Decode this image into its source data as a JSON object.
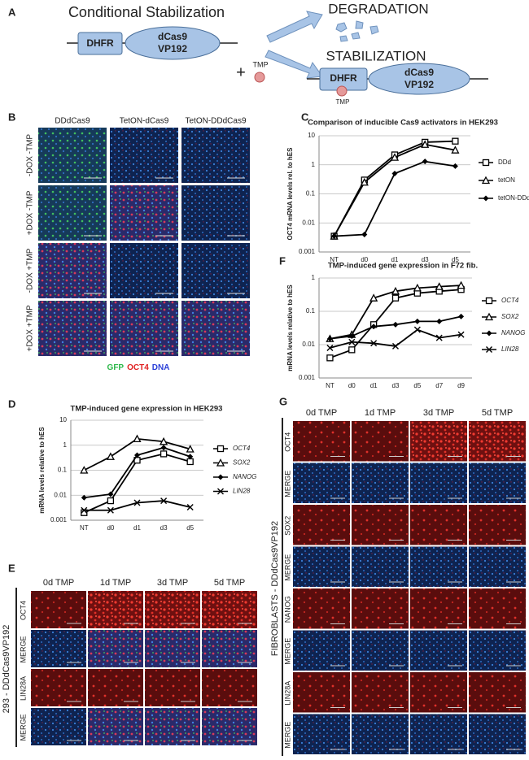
{
  "panel_a": {
    "label": "A",
    "title": "Conditional Stabilization",
    "dhfr": "DHFR",
    "dcas9": "dCas9",
    "vp192": "VP192",
    "plus": "+",
    "tmp": "TMP",
    "degradation": "DEGRADATION",
    "stabilization": "STABILIZATION",
    "dhfr_2": "DHFR",
    "dcas9_2": "dCas9",
    "vp192_2": "VP192",
    "tmp_2": "TMP"
  },
  "panel_b": {
    "label": "B",
    "columns": [
      "DDdCas9",
      "TetON-dCas9",
      "TetON-DDdCas9"
    ],
    "rows": [
      "-DOX -TMP",
      "+DOX -TMP",
      "-DOX +TMP",
      "+DOX +TMP"
    ],
    "legend": [
      "GFP",
      "OCT4",
      "DNA"
    ]
  },
  "panel_e": {
    "label": "E",
    "columns": [
      "0d TMP",
      "1d TMP",
      "3d TMP",
      "5d TMP"
    ],
    "side_label": "293 - DDdCas9VP192",
    "rows": [
      "OCT4",
      "MERGE",
      "LIN28A",
      "MERGE"
    ]
  },
  "panel_g": {
    "label": "G",
    "columns": [
      "0d TMP",
      "1d TMP",
      "3d TMP",
      "5d TMP"
    ],
    "side_label": "FIBROBLASTS - DDdCas9VP192",
    "rows": [
      "OCT4",
      "MERGE",
      "SOX2",
      "MERGE",
      "NANOG",
      "MERGE",
      "LIN28A",
      "MERGE"
    ]
  },
  "chart_data": [
    {
      "type": "line",
      "panel_label": "C",
      "title": "Comparison of inducible Cas9 activators in HEK293",
      "ylabel": "OCT4 mRNA levels rel. to hES",
      "categories": [
        "NT",
        "d0",
        "d1",
        "d3",
        "d5"
      ],
      "yscale": "log",
      "ylim": [
        0.001,
        10
      ],
      "yticks": [
        0.001,
        0.01,
        0.1,
        1,
        10
      ],
      "grid": true,
      "series": [
        {
          "name": "DDd",
          "color": "#000000",
          "marker": "square",
          "values": [
            0.0035,
            0.3,
            2.2,
            6,
            6.5
          ]
        },
        {
          "name": "tetON",
          "color": "#000000",
          "marker": "triangle",
          "values": [
            0.0035,
            0.25,
            1.8,
            5,
            3.2
          ]
        },
        {
          "name": "tetON-DDd",
          "color": "#000000",
          "marker": "diamond",
          "values": [
            0.0035,
            0.004,
            0.5,
            1.3,
            0.9
          ]
        }
      ]
    },
    {
      "type": "line",
      "panel_label": "D",
      "title": "TMP-induced gene expression in HEK293",
      "ylabel": "mRNA levels relative to hES",
      "categories": [
        "NT",
        "d0",
        "d1",
        "d3",
        "d5"
      ],
      "yscale": "log",
      "ylim": [
        0.001,
        10
      ],
      "yticks": [
        0.001,
        0.01,
        0.1,
        1,
        10
      ],
      "grid": true,
      "series": [
        {
          "name": "OCT4",
          "color": "#000000",
          "marker": "square",
          "values": [
            0.002,
            0.006,
            0.25,
            0.45,
            0.22
          ]
        },
        {
          "name": "SOX2",
          "color": "#000000",
          "marker": "triangle",
          "values": [
            0.1,
            0.35,
            1.8,
            1.4,
            0.7
          ]
        },
        {
          "name": "NANOG",
          "color": "#000000",
          "marker": "diamond",
          "values": [
            0.008,
            0.011,
            0.4,
            0.8,
            0.35
          ]
        },
        {
          "name": "LIN28",
          "color": "#000000",
          "marker": "x",
          "values": [
            0.0025,
            0.0025,
            0.005,
            0.006,
            0.0033
          ]
        }
      ]
    },
    {
      "type": "line",
      "panel_label": "F",
      "title": "TMP-induced gene expression in F72 fib.",
      "ylabel": "mRNA levels relative to hES",
      "categories": [
        "NT",
        "d0",
        "d1",
        "d3",
        "d5",
        "d7",
        "d9"
      ],
      "yscale": "log",
      "ylim": [
        0.001,
        1
      ],
      "yticks": [
        0.001,
        0.01,
        0.1,
        1
      ],
      "grid": true,
      "series": [
        {
          "name": "OCT4",
          "color": "#000000",
          "marker": "square",
          "values": [
            0.004,
            0.007,
            0.04,
            0.25,
            0.35,
            0.4,
            0.45
          ]
        },
        {
          "name": "SOX2",
          "color": "#000000",
          "marker": "triangle",
          "values": [
            0.015,
            0.02,
            0.25,
            0.4,
            0.5,
            0.55,
            0.6
          ]
        },
        {
          "name": "NANOG",
          "color": "#000000",
          "marker": "diamond",
          "values": [
            0.015,
            0.018,
            0.035,
            0.04,
            0.05,
            0.05,
            0.07
          ]
        },
        {
          "name": "LIN28",
          "color": "#000000",
          "marker": "x",
          "values": [
            0.008,
            0.012,
            0.011,
            0.009,
            0.028,
            0.016,
            0.02
          ]
        }
      ]
    }
  ]
}
